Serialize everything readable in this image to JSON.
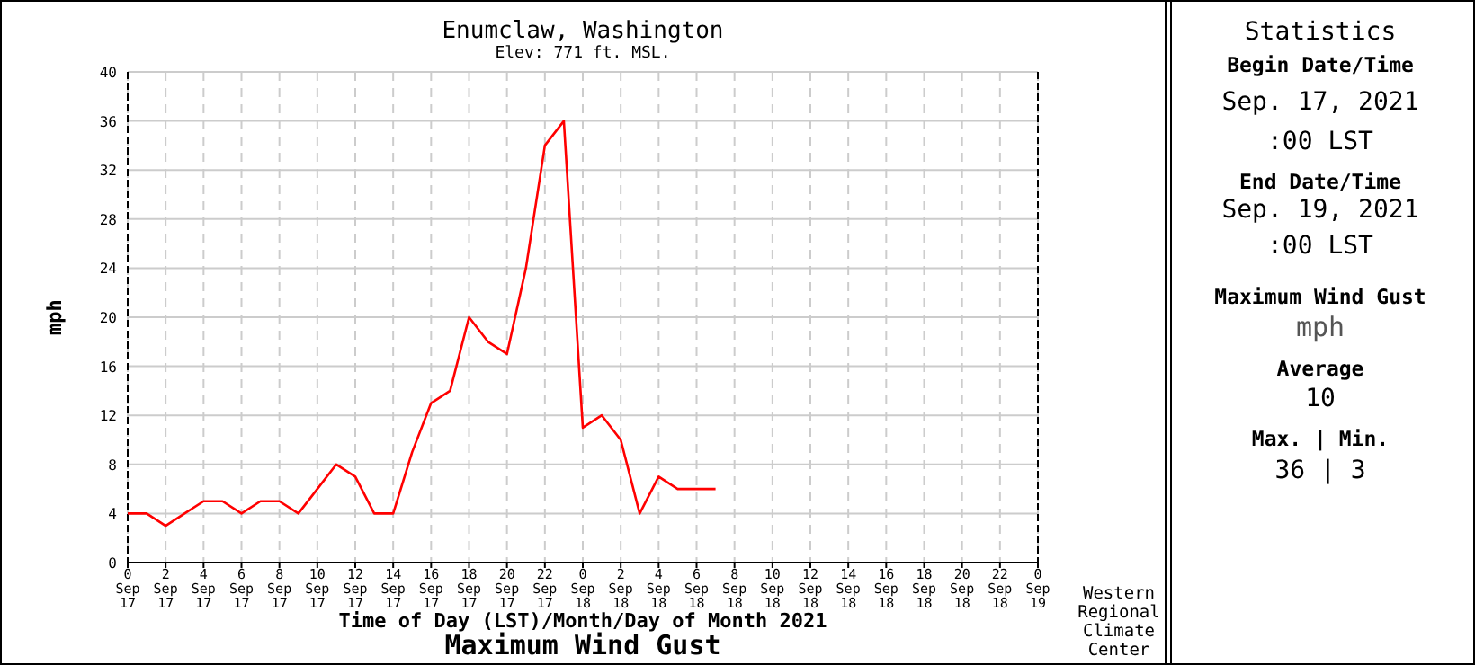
{
  "chart_data": [
    {
      "type": "line",
      "title": "Enumclaw, Washington",
      "subtitle": "Elev: 771 ft. MSL.",
      "xlabel": "Time of Day (LST)/Month/Day of Month 2021",
      "ylabel": "mph",
      "annotations": [
        "Maximum Wind Gust",
        "Western\nRegional\nClimate\nCenter"
      ],
      "categories": [
        "0\nSep\n17",
        null,
        "2\nSep\n17",
        null,
        "4\nSep\n17",
        null,
        "6\nSep\n17",
        null,
        "8\nSep\n17",
        null,
        "10\nSep\n17",
        null,
        "12\nSep\n17",
        null,
        "14\nSep\n17",
        null,
        "16\nSep\n17",
        null,
        "18\nSep\n17",
        null,
        "20\nSep\n17",
        null,
        "22\nSep\n17",
        null,
        "0\nSep\n18",
        null,
        "2\nSep\n18",
        null,
        "4\nSep\n18",
        null,
        "6\nSep\n18",
        null,
        "8\nSep\n18",
        null,
        "10\nSep\n18",
        null,
        "12\nSep\n18",
        null,
        "14\nSep\n18",
        null,
        "16\nSep\n18",
        null,
        "18\nSep\n18",
        null,
        "20\nSep\n18",
        null,
        "22\nSep\n18",
        null,
        "0\nSep\n19"
      ],
      "series": [
        {
          "color": "#ff0000",
          "values": [
            4,
            4,
            3,
            4,
            5,
            5,
            4,
            5,
            5,
            4,
            6,
            8,
            7,
            4,
            4,
            9,
            13,
            14,
            20,
            18,
            17,
            24,
            34,
            36,
            11,
            12,
            10,
            4,
            7,
            6,
            6,
            6,
            null,
            null,
            null,
            null,
            null,
            null,
            null,
            null,
            null,
            null,
            null,
            null,
            null,
            null,
            null,
            null,
            null
          ]
        }
      ],
      "ylim": [
        0,
        40
      ],
      "yticks": [
        0,
        4,
        8,
        12,
        16,
        20,
        24,
        28,
        32,
        36,
        40
      ],
      "grid": true,
      "line_style": "solid",
      "marker": "none"
    },
    {
      "type": "other",
      "title": "Statistics",
      "annotations": [
        "Begin Date/Time",
        "Sep. 17, 2021",
        ":00 LST",
        "End Date/Time",
        "Sep. 19, 2021",
        ":00 LST",
        "Maximum Wind Gust",
        "mph",
        "Average",
        "10",
        "Max. | Min.",
        "36 | 3"
      ]
    }
  ]
}
